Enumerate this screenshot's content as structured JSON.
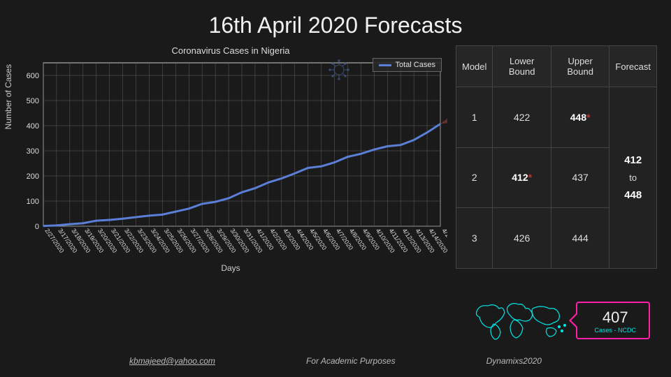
{
  "title": "16th April 2020 Forecasts",
  "chart": {
    "type": "line",
    "title": "Coronavirus Cases in Nigeria",
    "xlabel": "Days",
    "ylabel": "Number of Cases",
    "title_fontsize": 13,
    "label_fontsize": 12,
    "background_color": "#1a1a1a",
    "grid_color": "#606060",
    "axis_color": "#cccccc",
    "text_color": "#dddddd",
    "line_color": "#5b7fd6",
    "line_width": 3,
    "forecast_fan_color": "#7a3030",
    "legend": {
      "label": "Total Cases",
      "position": "top-right"
    },
    "ylim": [
      0,
      650
    ],
    "yticks": [
      0,
      100,
      200,
      300,
      400,
      500,
      600
    ],
    "xcategories": [
      "2/27/2020",
      "3/17/2020",
      "3/18/2020",
      "3/19/2020",
      "3/20/2020",
      "3/21/2020",
      "3/22/2020",
      "3/23/2020",
      "3/24/2020",
      "3/25/2020",
      "3/26/2020",
      "3/27/2020",
      "3/28/2020",
      "3/29/2020",
      "3/30/2020",
      "3/31/2020",
      "4/1/2020",
      "4/2/2020",
      "4/3/2020",
      "4/4/2020",
      "4/5/2020",
      "4/6/2020",
      "4/7/2020",
      "4/8/2020",
      "4/9/2020",
      "4/10/2020",
      "4/11/2020",
      "4/12/2020",
      "4/13/2020",
      "4/14/2020",
      "4/15/2020"
    ],
    "yvalues": [
      1,
      3,
      8,
      12,
      22,
      25,
      30,
      36,
      42,
      46,
      58,
      70,
      89,
      97,
      111,
      135,
      151,
      174,
      190,
      210,
      232,
      238,
      254,
      276,
      288,
      305,
      318,
      323,
      343,
      373,
      407
    ],
    "forecast_fan": {
      "low": 412,
      "high": 448
    }
  },
  "table": {
    "columns": [
      "Model",
      "Lower Bound",
      "Upper Bound",
      "Forecast"
    ],
    "column_widths": [
      "60px",
      "70px",
      "70px",
      "80px"
    ],
    "rows": [
      {
        "model": "1",
        "lower": "422",
        "lower_highlight": false,
        "upper": "448",
        "upper_highlight": true
      },
      {
        "model": "2",
        "lower": "412",
        "lower_highlight": true,
        "upper": "437",
        "upper_highlight": false
      },
      {
        "model": "3",
        "lower": "426",
        "lower_highlight": false,
        "upper": "444",
        "upper_highlight": false
      }
    ],
    "forecast_range": {
      "low": "412",
      "mid": "to",
      "high": "448"
    },
    "highlight_color": "#ffffff",
    "star_color": "#b33333",
    "border_color": "#444444",
    "cell_bg": "#222222"
  },
  "case_badge": {
    "count": "407",
    "label": "Cases - NCDC",
    "border_color": "#ff1fa8",
    "accent_color": "#00e5e5"
  },
  "world_map": {
    "stroke_color": "#00e5e5"
  },
  "footer": {
    "email": "kbmajeed@yahoo.com",
    "note": "For Academic Purposes",
    "brand": "Dynamixs2020"
  }
}
